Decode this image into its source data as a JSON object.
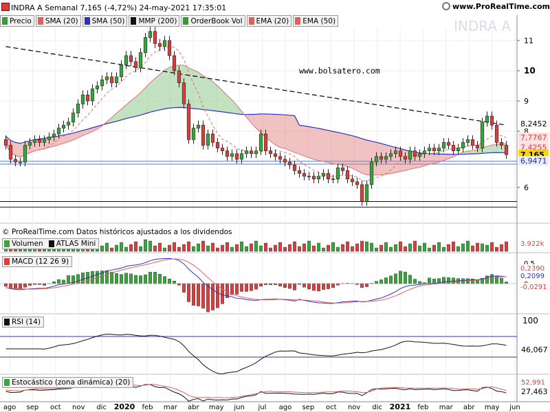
{
  "header": {
    "title": "INDRA A Semanal 7,165 (-4,72%) 24-may-2021 17:35:01",
    "website": "www.ProRealTime.com"
  },
  "legend": [
    {
      "label": "Precio",
      "color": "#3a9a3a"
    },
    {
      "label": "SMA (20)",
      "color": "#e06060"
    },
    {
      "label": "SMA (50)",
      "color": "#3030c0"
    },
    {
      "label": "MMP (200)",
      "color": "#111111"
    },
    {
      "label": "OrderBook Vol",
      "color": "#3a9a3a"
    },
    {
      "label": "EMA (20)",
      "color": "#e06060"
    },
    {
      "label": "EMA (50)",
      "color": "#e06060"
    }
  ],
  "watermark": "INDRA A",
  "site_text": "www.bolsatero.com",
  "copyright": "© ProRealTime.com  Datos históricos ajustados a los dividendos",
  "panels": {
    "volume": {
      "label1": "Volumen",
      "label2": "ATLAS Mini",
      "value": "3.922k"
    },
    "macd": {
      "label": "MACD (12 26 9)",
      "ticks": [
        "0,5",
        "0"
      ],
      "values": [
        "0,2390",
        "0,2099",
        "-0,0291"
      ]
    },
    "rsi": {
      "label": "RSI (14)",
      "ticks": [
        "100"
      ],
      "value": "46,067"
    },
    "stoch": {
      "label": "Estocástico (zona dinámica) (20)",
      "values": [
        "52,991",
        "27,463"
      ]
    }
  },
  "colors": {
    "up": "#3aa53a",
    "down": "#d84040",
    "sma50": "#3030c0",
    "ma200": "#111111",
    "ema": "#e06060",
    "price_tag": "#ffd700",
    "hline": "#4a78d0"
  },
  "chart_data": {
    "type": "candlestick",
    "x_ticks": [
      "ago",
      "sep",
      "oct",
      "nov",
      "dic",
      "2020",
      "feb",
      "mar",
      "abr",
      "may",
      "jun",
      "jul",
      "ago",
      "sep",
      "oct",
      "nov",
      "dic",
      "2021",
      "feb",
      "mar",
      "abr",
      "may",
      "jun"
    ],
    "y_ticks": [
      "11",
      "10",
      "9",
      "8",
      "6"
    ],
    "ylim": [
      5.0,
      11.7
    ],
    "price_tags": [
      {
        "label": "8,2452",
        "value": 8.2452,
        "style": "plain"
      },
      {
        "label": "7,7767",
        "value": 7.7767,
        "style": "red"
      },
      {
        "label": "7,4255",
        "value": 7.4255,
        "style": "red"
      },
      {
        "label": "7,165",
        "value": 7.165,
        "style": "yellow"
      },
      {
        "label": "6,9471",
        "value": 6.9471,
        "style": "blue"
      }
    ],
    "horizontal_lines": [
      6.93,
      6.83,
      5.5,
      5.3
    ],
    "close": [
      7.5,
      7.0,
      6.9,
      6.9,
      7.5,
      7.6,
      7.7,
      7.6,
      7.7,
      7.8,
      7.9,
      8.1,
      8.2,
      8.3,
      8.6,
      8.9,
      9.2,
      9.0,
      9.4,
      9.5,
      9.7,
      9.8,
      9.6,
      9.8,
      10.2,
      10.5,
      10.3,
      10.1,
      10.6,
      11.1,
      11.3,
      10.9,
      10.8,
      11.0,
      10.5,
      10.0,
      9.6,
      8.9,
      7.7,
      8.1,
      8.2,
      7.5,
      7.9,
      7.6,
      7.4,
      7.3,
      7.1,
      7.2,
      7.0,
      7.2,
      7.3,
      7.2,
      7.3,
      7.9,
      7.3,
      7.2,
      7.1,
      7.0,
      6.9,
      6.8,
      6.6,
      6.5,
      6.4,
      6.4,
      6.3,
      6.4,
      6.5,
      6.3,
      6.3,
      6.7,
      6.6,
      6.3,
      6.2,
      6.1,
      5.5,
      6.1,
      6.9,
      7.1,
      7.0,
      7.1,
      7.2,
      7.3,
      7.1,
      7.0,
      7.3,
      7.1,
      7.2,
      7.3,
      7.4,
      7.3,
      7.4,
      7.6,
      7.5,
      7.3,
      7.4,
      7.6,
      7.7,
      7.5,
      7.4,
      8.3,
      8.5,
      8.2,
      7.6,
      7.5,
      7.165
    ]
  }
}
